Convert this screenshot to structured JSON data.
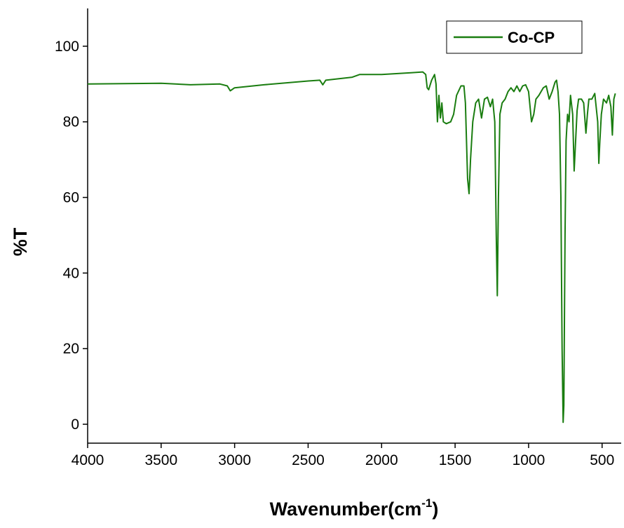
{
  "chart_data": {
    "type": "line",
    "xlabel": [
      "Wavenumber(cm",
      "-1",
      ")"
    ],
    "ylabel": "%T",
    "xlim": [
      4000,
      370
    ],
    "ylim": [
      -5,
      110
    ],
    "xticks": [
      4000,
      3500,
      3000,
      2500,
      2000,
      1500,
      1000,
      500
    ],
    "yticks": [
      0,
      20,
      40,
      60,
      80,
      100
    ],
    "legend": "top-right",
    "x": [
      4000,
      3500,
      3300,
      3100,
      3050,
      3030,
      3000,
      2800,
      2500,
      2420,
      2400,
      2380,
      2200,
      2150,
      2000,
      1800,
      1720,
      1700,
      1690,
      1680,
      1660,
      1640,
      1630,
      1620,
      1610,
      1600,
      1590,
      1580,
      1560,
      1530,
      1510,
      1490,
      1460,
      1440,
      1430,
      1415,
      1405,
      1395,
      1380,
      1360,
      1340,
      1320,
      1300,
      1280,
      1260,
      1245,
      1230,
      1220,
      1213,
      1205,
      1195,
      1180,
      1160,
      1140,
      1120,
      1100,
      1080,
      1060,
      1040,
      1020,
      1000,
      980,
      965,
      950,
      930,
      900,
      880,
      860,
      840,
      820,
      810,
      800,
      790,
      780,
      772,
      765,
      760,
      752,
      745,
      735,
      725,
      715,
      700,
      690,
      680,
      670,
      660,
      640,
      625,
      610,
      600,
      590,
      570,
      550,
      530,
      522,
      515,
      505,
      490,
      470,
      455,
      440,
      430,
      420,
      410
    ],
    "series": [
      {
        "name": "Co-CP",
        "color": "#1a7d10",
        "values": [
          90,
          90.2,
          89.8,
          90,
          89.5,
          88.2,
          89,
          89.8,
          90.8,
          91,
          89.8,
          91,
          91.8,
          92.5,
          92.5,
          93,
          93.2,
          92.5,
          89,
          88.5,
          91,
          92.5,
          90,
          80,
          87,
          81,
          85,
          80,
          79.5,
          80,
          82,
          87,
          89.5,
          89.5,
          85,
          65,
          61,
          70,
          80,
          85,
          86,
          81,
          86,
          86.5,
          84,
          86,
          80,
          50,
          34,
          60,
          82,
          85,
          86,
          88,
          89,
          88,
          89.5,
          88,
          89.5,
          89.8,
          88,
          80,
          82,
          86,
          87,
          89,
          89.5,
          86,
          88,
          90.5,
          91,
          88,
          82,
          60,
          20,
          0.5,
          5,
          50,
          75,
          82,
          80,
          87,
          82,
          67,
          75,
          83,
          86,
          86,
          85,
          77,
          82,
          86,
          86,
          87.5,
          80,
          69,
          75,
          82,
          86,
          85,
          87,
          84,
          76.5,
          86,
          87.5
        ]
      }
    ]
  }
}
